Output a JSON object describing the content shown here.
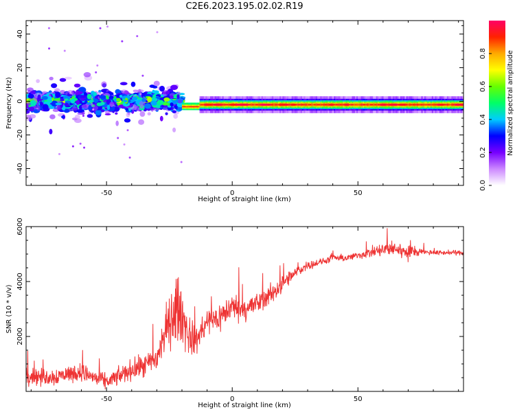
{
  "title": "C2E6.2023.195.02.02.R19",
  "chart_data": [
    {
      "type": "heatmap",
      "xlabel": "Height of straight line (km)",
      "ylabel": "Frequency (Hz)",
      "xlim": [
        -82,
        92
      ],
      "ylim": [
        -50,
        48
      ],
      "xticks": [
        -50,
        0,
        50
      ],
      "yticks": [
        -40,
        -20,
        0,
        20,
        40
      ],
      "colorbar": {
        "label": "Normalized spectral amplitude",
        "range": [
          0,
          1
        ],
        "ticks": [
          "0.0",
          "0.2",
          "0.4",
          "0.6",
          "0.8"
        ],
        "colors": [
          "#ffffff",
          "#cc88ff",
          "#7700ff",
          "#0000ff",
          "#00ccff",
          "#00ff66",
          "#66ff00",
          "#ffff00",
          "#ffaa00",
          "#ff2200",
          "#ff0066"
        ]
      },
      "regions": [
        {
          "x_range": [
            -82,
            -20
          ],
          "f_center": 0,
          "f_spread": 10,
          "amplitude": "0.1-0.5, noisy"
        },
        {
          "x_range": [
            -20,
            -13
          ],
          "f_center": -3,
          "f_spread": 2,
          "amplitude": "0.5-0.9"
        },
        {
          "x_range": [
            -13,
            92
          ],
          "f_center": -2,
          "f_spread": 3,
          "amplitude": "0.7-0.95"
        }
      ]
    },
    {
      "type": "line",
      "xlabel": "Height of straight line (km)",
      "ylabel": "SNR (10 * v/v)",
      "xlim": [
        -82,
        92
      ],
      "ylim": [
        0,
        6000
      ],
      "xticks": [
        -50,
        0,
        50
      ],
      "yticks": [
        2000,
        4000,
        6000
      ],
      "color": "#ee3333",
      "x": [
        -82,
        -75,
        -70,
        -65,
        -60,
        -55,
        -50,
        -45,
        -40,
        -35,
        -30,
        -25,
        -22,
        -20,
        -18,
        -15,
        -10,
        -5,
        0,
        5,
        10,
        15,
        20,
        25,
        30,
        35,
        40,
        45,
        50,
        55,
        60,
        65,
        70,
        75,
        80,
        85,
        92
      ],
      "y": [
        600,
        500,
        550,
        650,
        700,
        500,
        350,
        550,
        800,
        900,
        1200,
        2600,
        3000,
        2800,
        2200,
        1800,
        2500,
        2700,
        3100,
        3000,
        3200,
        3500,
        3900,
        4300,
        4600,
        4700,
        4850,
        4850,
        4950,
        5050,
        5150,
        5200,
        5050,
        5100,
        5050,
        5050,
        5050
      ],
      "noise": [
        300,
        300,
        300,
        300,
        300,
        300,
        250,
        300,
        350,
        400,
        500,
        900,
        1200,
        1000,
        800,
        500,
        500,
        500,
        450,
        400,
        400,
        350,
        300,
        200,
        150,
        120,
        120,
        120,
        120,
        180,
        250,
        250,
        250,
        100,
        80,
        80,
        80
      ]
    }
  ]
}
